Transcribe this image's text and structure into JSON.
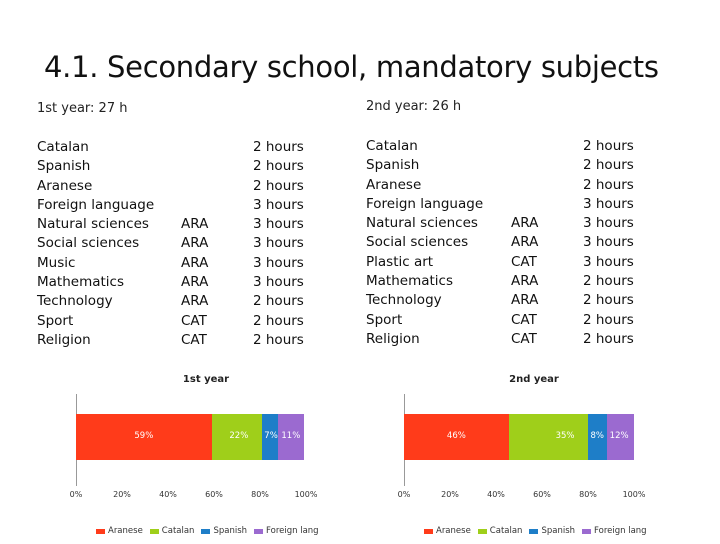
{
  "title": "4.1. Secondary school, mandatory subjects",
  "colors": {
    "aranese": "#ff3b1a",
    "catalan": "#9fcf1a",
    "spanish": "#1e7ec8",
    "foreign": "#9b6ad0"
  },
  "year1": {
    "heading": "1st year: 27 h",
    "subjects": [
      "Catalan",
      "Spanish",
      "Aranese",
      "Foreign language",
      "Natural sciences",
      "Social sciences",
      "Music",
      "Mathematics",
      "Technology",
      "Sport",
      "Religion"
    ],
    "langs": [
      "",
      "",
      "",
      "",
      "ARA",
      "ARA",
      "ARA",
      "ARA",
      "ARA",
      "CAT",
      "CAT"
    ],
    "hours": [
      "2 hours",
      "2 hours",
      "2 hours",
      "3 hours",
      "3 hours",
      "3 hours",
      "3 hours",
      "3 hours",
      "2 hours",
      "2 hours",
      "2 hours"
    ]
  },
  "year2": {
    "heading": "2nd year: 26 h",
    "subjects": [
      "Catalan",
      "Spanish",
      "Aranese",
      "Foreign language",
      "Natural sciences",
      "Social sciences",
      "Plastic art",
      "Mathematics",
      "Technology",
      "Sport",
      "Religion"
    ],
    "langs": [
      "",
      "",
      "",
      "",
      "ARA",
      "ARA",
      "CAT",
      "ARA",
      "ARA",
      "CAT",
      "CAT"
    ],
    "hours": [
      "2 hours",
      "2 hours",
      "2 hours",
      "3 hours",
      "3 hours",
      "3 hours",
      "3 hours",
      "2 hours",
      "2 hours",
      "2 hours",
      "2 hours"
    ]
  },
  "chart_data": [
    {
      "type": "bar",
      "title": "1st year",
      "categories": [
        "1st year"
      ],
      "series": [
        {
          "name": "Aranese",
          "values": [
            59
          ],
          "label": "59%"
        },
        {
          "name": "Catalan",
          "values": [
            22
          ],
          "label": "22%"
        },
        {
          "name": "Spanish",
          "values": [
            7
          ],
          "label": "7%"
        },
        {
          "name": "Foreign lang",
          "values": [
            11
          ],
          "label": "11%"
        }
      ],
      "xlim": [
        0,
        100
      ],
      "ticks": [
        "0%",
        "20%",
        "40%",
        "60%",
        "80%",
        "100%"
      ]
    },
    {
      "type": "bar",
      "title": "2nd year",
      "categories": [
        "2nd year"
      ],
      "series": [
        {
          "name": "Aranese",
          "values": [
            46
          ],
          "label": "46%"
        },
        {
          "name": "Catalan",
          "values": [
            35
          ],
          "label": "35%"
        },
        {
          "name": "Spanish",
          "values": [
            8
          ],
          "label": "8%"
        },
        {
          "name": "Foreign lang",
          "values": [
            12
          ],
          "label": "12%"
        }
      ],
      "xlim": [
        0,
        100
      ],
      "ticks": [
        "0%",
        "20%",
        "40%",
        "60%",
        "80%",
        "100%"
      ]
    }
  ]
}
